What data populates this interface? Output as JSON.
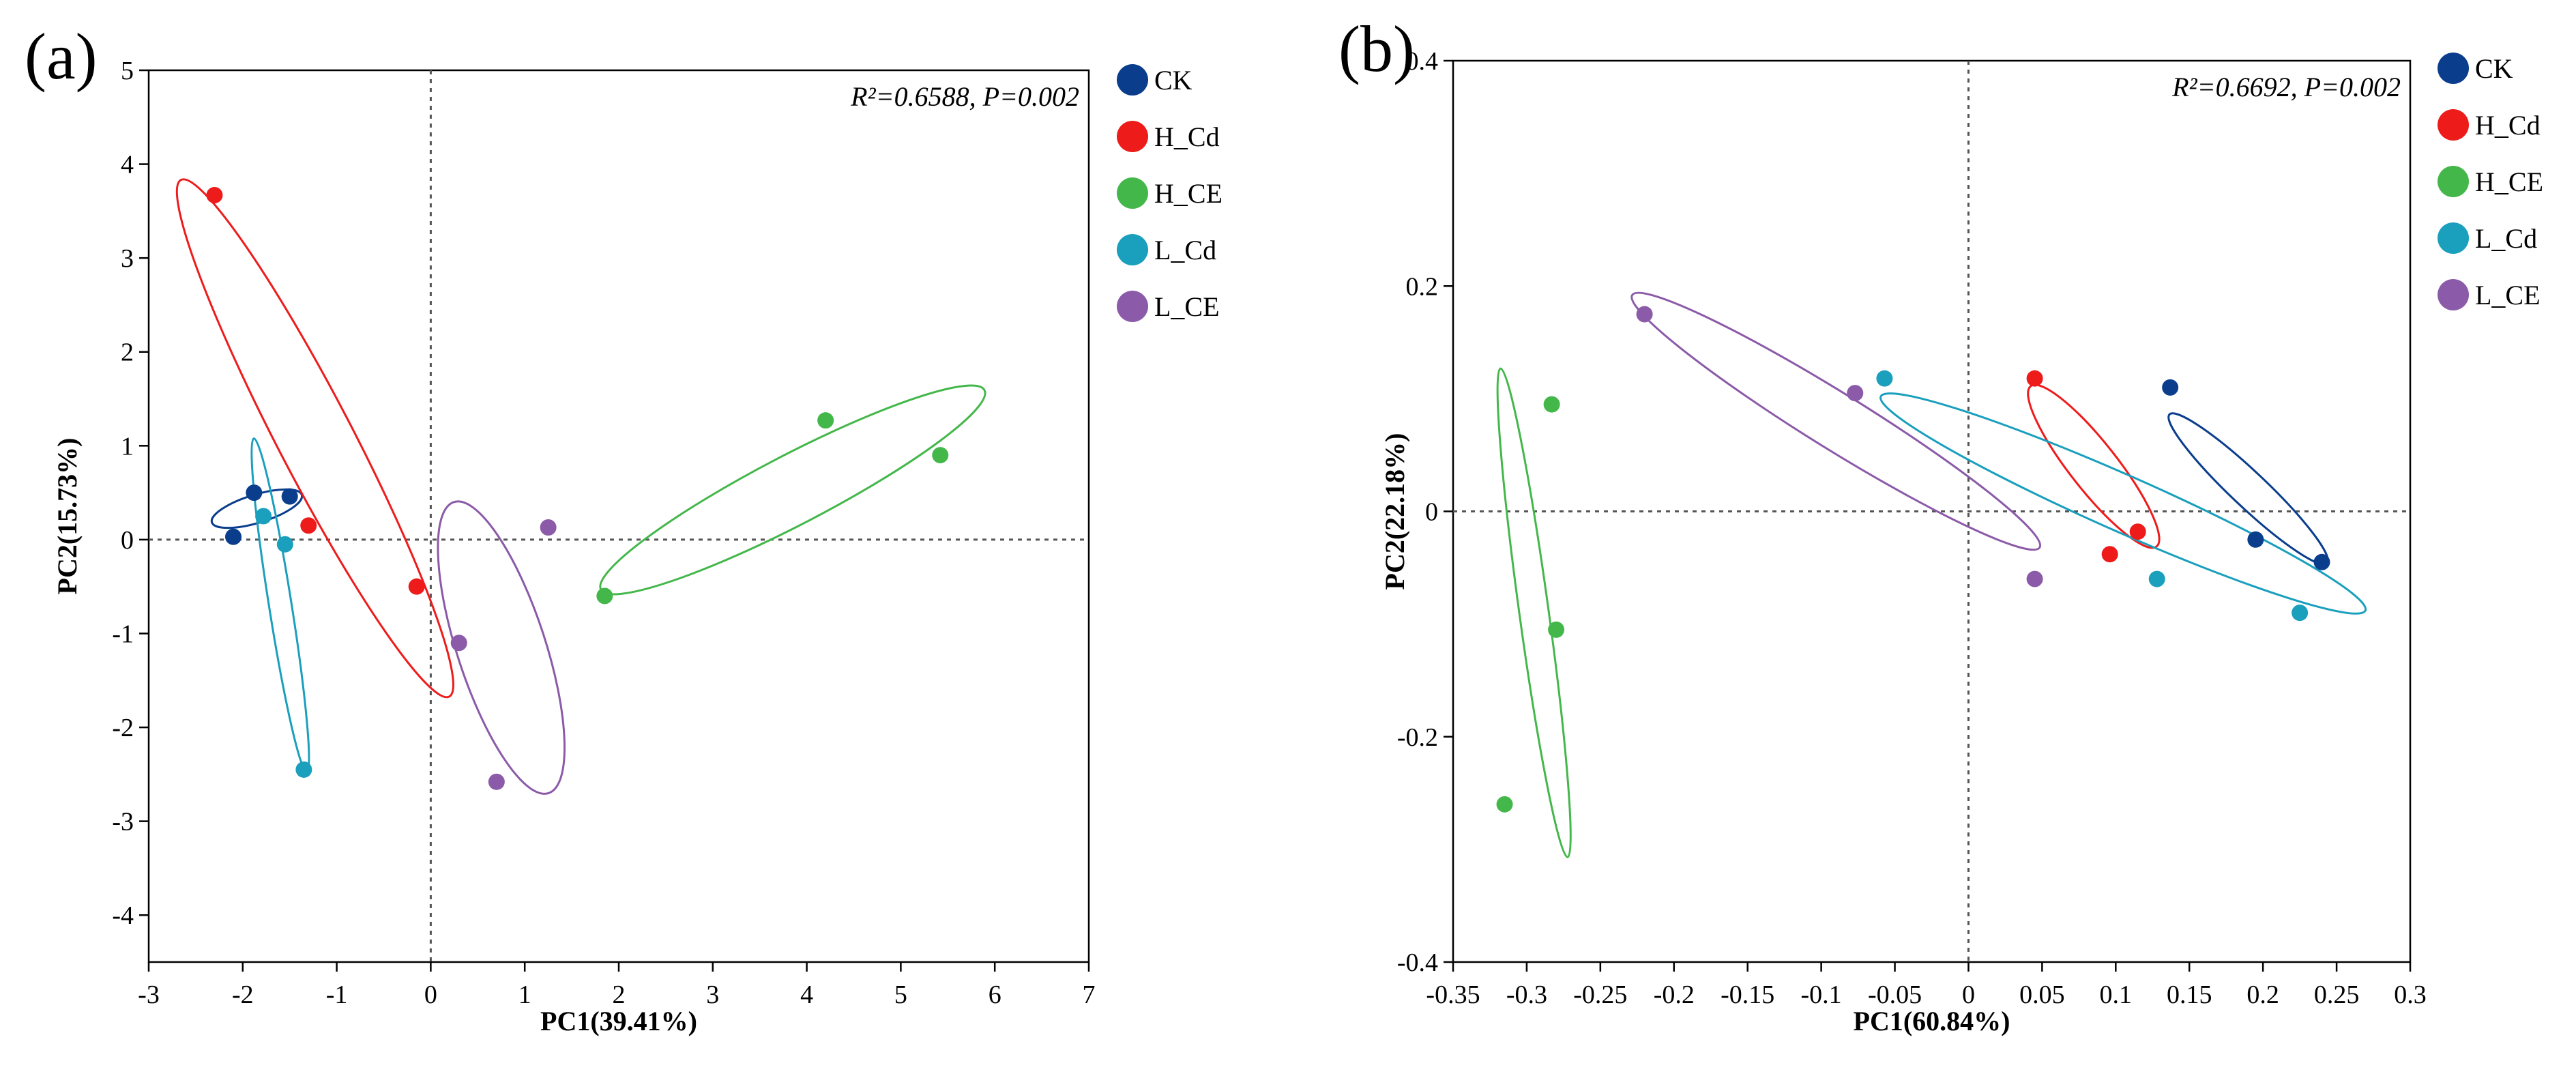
{
  "colors": {
    "CK": "#0a3d8c",
    "H_Cd": "#ee1b1b",
    "H_CE": "#44b74a",
    "L_Cd": "#1a9fbd",
    "L_CE": "#8b5aa8"
  },
  "legend_names": [
    "CK",
    "H_Cd",
    "H_CE",
    "L_Cd",
    "L_CE"
  ],
  "chart_data": [
    {
      "type": "scatter",
      "panel_label": "(a)",
      "title": "",
      "xlabel": "PC1(39.41%)",
      "ylabel": "PC2(15.73%)",
      "stat_text": "R²=0.6588, P=0.002",
      "xlim": [
        -3,
        7
      ],
      "ylim": [
        -4.5,
        5
      ],
      "xticks": [
        -3,
        -2,
        -1,
        0,
        1,
        2,
        3,
        4,
        5,
        6,
        7
      ],
      "yticks": [
        -4,
        -3,
        -2,
        -1,
        0,
        1,
        2,
        3,
        4,
        5
      ],
      "xtick_labels": [
        "-3",
        "-2",
        "-1",
        "0",
        "1",
        "2",
        "3",
        "4",
        "5",
        "6",
        "7"
      ],
      "ytick_labels": [
        "-4",
        "-3",
        "-2",
        "-1",
        "0",
        "1",
        "2",
        "3",
        "4",
        "5"
      ],
      "reference_lines": {
        "x": 0,
        "y": 0
      },
      "series": [
        {
          "name": "CK",
          "points": [
            [
              -1.88,
              0.5
            ],
            [
              -1.5,
              0.46
            ],
            [
              -2.1,
              0.03
            ]
          ],
          "ellipse": {
            "cx": -1.85,
            "cy": 0.33,
            "rx": 0.5,
            "ry": 0.15,
            "angle_deg": 17
          }
        },
        {
          "name": "H_Cd",
          "points": [
            [
              -2.3,
              3.67
            ],
            [
              -1.3,
              0.15
            ],
            [
              -0.15,
              -0.5
            ]
          ],
          "ellipse": {
            "cx": -1.23,
            "cy": 1.08,
            "rx": 3.1,
            "ry": 0.4,
            "angle_deg": -62.6
          }
        },
        {
          "name": "H_CE",
          "points": [
            [
              4.2,
              1.27
            ],
            [
              5.42,
              0.9
            ],
            [
              1.85,
              -0.6
            ]
          ],
          "ellipse": {
            "cx": 3.85,
            "cy": 0.53,
            "rx": 2.3,
            "ry": 0.37,
            "angle_deg": 27.5
          }
        },
        {
          "name": "L_Cd",
          "points": [
            [
              -1.78,
              0.25
            ],
            [
              -1.55,
              -0.05
            ],
            [
              -1.35,
              -2.45
            ]
          ],
          "ellipse": {
            "cx": -1.6,
            "cy": -0.7,
            "rx": 1.8,
            "ry": 0.12,
            "angle_deg": -81
          }
        },
        {
          "name": "L_CE",
          "points": [
            [
              1.25,
              0.13
            ],
            [
              0.3,
              -1.1
            ],
            [
              0.7,
              -2.58
            ]
          ],
          "ellipse": {
            "cx": 0.75,
            "cy": -1.15,
            "rx": 1.63,
            "ry": 0.47,
            "angle_deg": -72
          }
        }
      ],
      "legend": "right"
    },
    {
      "type": "scatter",
      "panel_label": "(b)",
      "title": "",
      "xlabel": "PC1(60.84%)",
      "ylabel": "PC2(22.18%)",
      "stat_text": "R²=0.6692, P=0.002",
      "xlim": [
        -0.35,
        0.3
      ],
      "ylim": [
        -0.4,
        0.4
      ],
      "xticks": [
        -0.35,
        -0.3,
        -0.25,
        -0.2,
        -0.15,
        -0.1,
        -0.05,
        0,
        0.05,
        0.1,
        0.15,
        0.2,
        0.25,
        0.3
      ],
      "yticks": [
        -0.4,
        -0.2,
        0,
        0.2,
        0.4
      ],
      "xtick_labels": [
        "-0.35",
        "-0.3",
        "-0.25",
        "-0.2",
        "-0.15",
        "-0.1",
        "-0.05",
        "0",
        "0.05",
        "0.1",
        "0.15",
        "0.2",
        "0.25",
        "0.3"
      ],
      "ytick_labels": [
        "-0.4",
        "-0.2",
        "0",
        "0.2",
        "0.4"
      ],
      "reference_lines": {
        "x": 0,
        "y": 0
      },
      "series": [
        {
          "name": "CK",
          "points": [
            [
              0.137,
              0.11
            ],
            [
              0.195,
              -0.025
            ],
            [
              0.24,
              -0.045
            ]
          ],
          "ellipse": {
            "cx": 0.19,
            "cy": 0.02,
            "rx": 0.085,
            "ry": 0.013,
            "angle_deg": -51
          }
        },
        {
          "name": "H_Cd",
          "points": [
            [
              0.045,
              0.118
            ],
            [
              0.115,
              -0.018
            ],
            [
              0.096,
              -0.038
            ]
          ],
          "ellipse": {
            "cx": 0.085,
            "cy": 0.04,
            "rx": 0.083,
            "ry": 0.017,
            "angle_deg": -59
          }
        },
        {
          "name": "H_CE",
          "points": [
            [
              -0.283,
              0.095
            ],
            [
              -0.28,
              -0.105
            ],
            [
              -0.315,
              -0.26
            ]
          ],
          "ellipse": {
            "cx": -0.295,
            "cy": -0.09,
            "rx": 0.218,
            "ry": 0.01,
            "angle_deg": -84
          }
        },
        {
          "name": "L_Cd",
          "points": [
            [
              -0.057,
              0.118
            ],
            [
              0.128,
              -0.06
            ],
            [
              0.225,
              -0.09
            ]
          ],
          "ellipse": {
            "cx": 0.105,
            "cy": 0.007,
            "rx": 0.19,
            "ry": 0.023,
            "angle_deg": -30
          }
        },
        {
          "name": "L_CE",
          "points": [
            [
              -0.22,
              0.175
            ],
            [
              -0.077,
              0.105
            ],
            [
              0.045,
              -0.06
            ]
          ],
          "ellipse": {
            "cx": -0.09,
            "cy": 0.08,
            "rx": 0.178,
            "ry": 0.022,
            "angle_deg": -39
          }
        }
      ],
      "legend": "right"
    }
  ]
}
